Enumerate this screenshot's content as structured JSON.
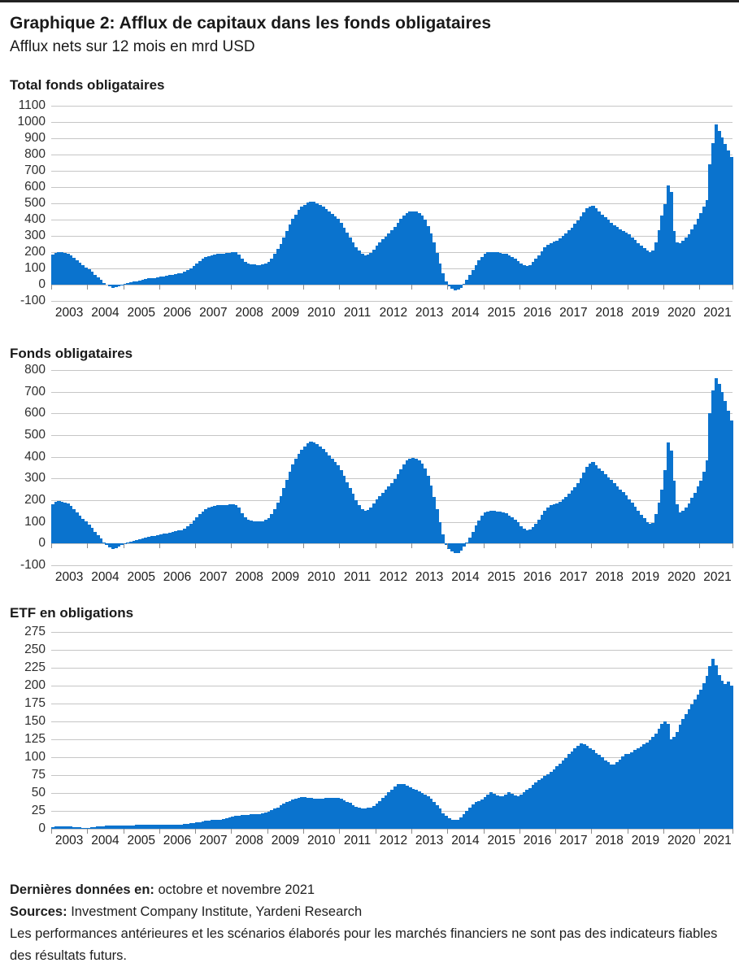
{
  "header": {
    "title": "Graphique 2: Afflux de capitaux dans les fonds obligataires",
    "subtitle": "Afflux nets sur 12 mois en mrd USD"
  },
  "accent_color": "#0a73ce",
  "gridline_color": "#c6c6c6",
  "x_years": [
    2003,
    2004,
    2005,
    2006,
    2007,
    2008,
    2009,
    2010,
    2011,
    2012,
    2013,
    2014,
    2015,
    2016,
    2017,
    2018,
    2019,
    2020,
    2021
  ],
  "chart_data": [
    {
      "type": "bar",
      "title": "Total fonds obligataires",
      "unit": "mrd USD",
      "freq": "monthly",
      "x_start": "2003-01",
      "x_end": "2021-11",
      "ylim": [
        -100,
        1100
      ],
      "yticks": [
        1100,
        1000,
        900,
        800,
        700,
        600,
        500,
        400,
        300,
        200,
        100,
        0,
        -100
      ],
      "grid": true,
      "bar_color": "#0a73ce",
      "values": [
        185,
        196,
        200,
        198,
        195,
        190,
        178,
        163,
        148,
        133,
        118,
        107,
        94,
        78,
        60,
        44,
        28,
        12,
        0,
        -12,
        -20,
        -16,
        -9,
        -3,
        3,
        8,
        13,
        18,
        22,
        27,
        31,
        35,
        38,
        40,
        42,
        45,
        48,
        52,
        56,
        59,
        62,
        65,
        68,
        72,
        78,
        88,
        100,
        114,
        132,
        146,
        158,
        168,
        176,
        182,
        187,
        191,
        190,
        191,
        193,
        196,
        200,
        198,
        185,
        160,
        140,
        130,
        126,
        123,
        121,
        122,
        126,
        132,
        142,
        162,
        188,
        218,
        252,
        292,
        330,
        368,
        404,
        432,
        458,
        478,
        492,
        505,
        512,
        508,
        500,
        490,
        478,
        465,
        450,
        435,
        420,
        404,
        380,
        352,
        322,
        292,
        262,
        232,
        208,
        188,
        178,
        183,
        197,
        216,
        238,
        258,
        278,
        297,
        314,
        334,
        357,
        382,
        406,
        426,
        442,
        450,
        450,
        448,
        440,
        424,
        398,
        362,
        315,
        258,
        195,
        130,
        68,
        18,
        -10,
        -25,
        -35,
        -32,
        -18,
        5,
        30,
        60,
        92,
        122,
        150,
        172,
        190,
        198,
        202,
        201,
        198,
        195,
        192,
        188,
        180,
        170,
        158,
        145,
        130,
        120,
        115,
        122,
        138,
        158,
        180,
        205,
        228,
        245,
        255,
        263,
        272,
        284,
        298,
        315,
        333,
        352,
        373,
        396,
        420,
        446,
        468,
        482,
        486,
        468,
        450,
        432,
        415,
        398,
        382,
        367,
        354,
        342,
        331,
        321,
        308,
        292,
        275,
        257,
        240,
        224,
        210,
        200,
        212,
        258,
        335,
        425,
        495,
        612,
        570,
        330,
        262,
        255,
        268,
        288,
        310,
        338,
        370,
        405,
        440,
        480,
        520,
        740,
        870,
        985,
        945,
        905,
        865,
        825,
        785
      ]
    },
    {
      "type": "bar",
      "title": "Fonds obligataires",
      "unit": "mrd USD",
      "freq": "monthly",
      "x_start": "2003-01",
      "x_end": "2021-11",
      "ylim": [
        -100,
        800
      ],
      "yticks": [
        800,
        700,
        600,
        500,
        400,
        300,
        200,
        100,
        0,
        -100
      ],
      "grid": true,
      "bar_color": "#0a73ce",
      "values": [
        181,
        191,
        195,
        193,
        190,
        185,
        172,
        157,
        142,
        127,
        112,
        101,
        88,
        72,
        54,
        38,
        22,
        6,
        -6,
        -17,
        -25,
        -20,
        -13,
        -6,
        -1,
        4,
        9,
        13,
        17,
        21,
        25,
        29,
        32,
        34,
        36,
        39,
        42,
        45,
        48,
        51,
        54,
        57,
        60,
        63,
        69,
        79,
        91,
        105,
        123,
        137,
        148,
        157,
        165,
        170,
        175,
        178,
        177,
        177,
        178,
        180,
        181,
        179,
        166,
        141,
        121,
        111,
        107,
        104,
        101,
        101,
        104,
        109,
        118,
        137,
        160,
        188,
        220,
        257,
        294,
        330,
        364,
        390,
        413,
        432,
        447,
        461,
        470,
        466,
        458,
        448,
        436,
        422,
        407,
        392,
        377,
        361,
        338,
        312,
        284,
        256,
        229,
        201,
        179,
        160,
        150,
        154,
        167,
        184,
        203,
        219,
        235,
        250,
        263,
        279,
        298,
        320,
        343,
        364,
        382,
        392,
        395,
        393,
        385,
        370,
        346,
        312,
        268,
        215,
        158,
        98,
        42,
        -5,
        -25,
        -38,
        -45,
        -42,
        -32,
        -15,
        5,
        28,
        55,
        82,
        108,
        128,
        145,
        149,
        150,
        150,
        149,
        148,
        145,
        139,
        128,
        120,
        110,
        98,
        80,
        68,
        60,
        64,
        76,
        92,
        111,
        133,
        153,
        168,
        176,
        180,
        185,
        193,
        203,
        216,
        229,
        244,
        261,
        280,
        301,
        328,
        352,
        369,
        376,
        362,
        348,
        334,
        320,
        306,
        292,
        278,
        264,
        250,
        236,
        222,
        205,
        188,
        170,
        152,
        134,
        116,
        100,
        92,
        95,
        135,
        190,
        250,
        340,
        465,
        430,
        290,
        180,
        142,
        150,
        165,
        185,
        210,
        235,
        262,
        290,
        330,
        385,
        600,
        705,
        762,
        735,
        700,
        658,
        612,
        568
      ]
    },
    {
      "type": "bar",
      "title": "ETF en obligations",
      "unit": "mrd USD",
      "freq": "monthly",
      "x_start": "2003-01",
      "x_end": "2021-11",
      "ylim": [
        0,
        275
      ],
      "yticks": [
        275,
        250,
        225,
        200,
        175,
        150,
        125,
        100,
        75,
        50,
        25,
        0
      ],
      "grid": true,
      "bar_color": "#0a73ce",
      "values": [
        2,
        3,
        3,
        3,
        3,
        3,
        3,
        2,
        2,
        2,
        1,
        1,
        1,
        2,
        2,
        3,
        3,
        3,
        4,
        4,
        4,
        4,
        4,
        4,
        4,
        5,
        5,
        5,
        6,
        6,
        6,
        6,
        6,
        6,
        6,
        6,
        6,
        6,
        6,
        6,
        6,
        6,
        6,
        6,
        7,
        7,
        8,
        8,
        9,
        9,
        10,
        11,
        11,
        12,
        12,
        13,
        13,
        14,
        15,
        16,
        17,
        18,
        18,
        19,
        19,
        19,
        20,
        20,
        20,
        21,
        22,
        23,
        24,
        26,
        28,
        30,
        33,
        35,
        37,
        39,
        41,
        42,
        43,
        44,
        44,
        43,
        43,
        42,
        42,
        42,
        42,
        43,
        43,
        43,
        43,
        43,
        42,
        40,
        38,
        36,
        33,
        31,
        29,
        28,
        28,
        29,
        30,
        32,
        35,
        39,
        43,
        47,
        51,
        55,
        59,
        62,
        63,
        62,
        60,
        58,
        56,
        54,
        52,
        50,
        48,
        45,
        42,
        38,
        33,
        28,
        22,
        18,
        15,
        13,
        12,
        13,
        16,
        20,
        25,
        30,
        34,
        37,
        39,
        41,
        44,
        48,
        51,
        49,
        47,
        45,
        46,
        48,
        51,
        49,
        47,
        46,
        48,
        51,
        54,
        57,
        61,
        65,
        68,
        71,
        74,
        76,
        79,
        83,
        87,
        91,
        95,
        99,
        104,
        108,
        112,
        116,
        119,
        118,
        116,
        113,
        110,
        106,
        103,
        100,
        96,
        93,
        90,
        90,
        93,
        97,
        101,
        105,
        105,
        107,
        110,
        112,
        115,
        118,
        121,
        124,
        128,
        133,
        140,
        147,
        150,
        147,
        125,
        128,
        135,
        145,
        153,
        160,
        167,
        174,
        181,
        188,
        194,
        203,
        214,
        227,
        238,
        228,
        215,
        207,
        202,
        206,
        200
      ]
    }
  ],
  "footer": {
    "last_data_label": "Dernières données en:",
    "last_data_value": "octobre et novembre 2021",
    "sources_label": "Sources:",
    "sources_value": "Investment Company Institute, Yardeni Research",
    "disclaimer": "Les performances antérieures et les scénarios élaborés pour les marchés financiers ne sont pas des indicateurs fiables des résultats futurs."
  }
}
